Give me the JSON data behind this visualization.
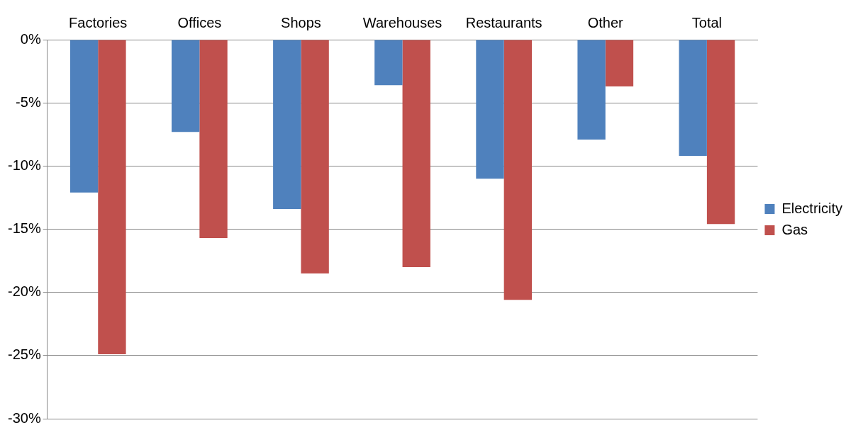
{
  "chart_data": {
    "type": "bar",
    "categories": [
      "Factories",
      "Offices",
      "Shops",
      "Warehouses",
      "Restaurants",
      "Other",
      "Total"
    ],
    "series": [
      {
        "name": "Electricity",
        "color": "#4f81bd",
        "values": [
          -12.1,
          -7.3,
          -13.4,
          -3.6,
          -11.0,
          -7.9,
          -9.2
        ]
      },
      {
        "name": "Gas",
        "color": "#c0504d",
        "values": [
          -24.9,
          -15.7,
          -18.5,
          -18.0,
          -20.6,
          -3.7,
          -14.6
        ]
      }
    ],
    "ylim": [
      -30,
      0
    ],
    "yticks": [
      {
        "value": -30,
        "label": "-30%"
      },
      {
        "value": -25,
        "label": "-25%"
      },
      {
        "value": -20,
        "label": "-20%"
      },
      {
        "value": -15,
        "label": "-15%"
      },
      {
        "value": -10,
        "label": "-10%"
      },
      {
        "value": -5,
        "label": "-5%"
      },
      {
        "value": 0,
        "label": "0%"
      }
    ],
    "grid": "y",
    "legend": "right"
  }
}
